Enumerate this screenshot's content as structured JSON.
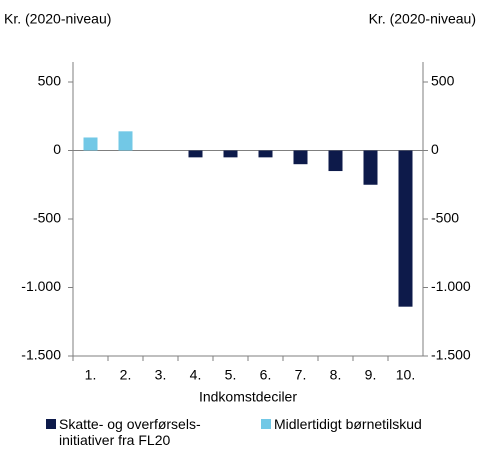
{
  "chart_data": {
    "type": "bar",
    "y_label": "Kr. (2020-niveau)",
    "y2_label": "Kr. (2020-niveau)",
    "x_label": "Indkomstdeciler",
    "categories": [
      "1.",
      "2.",
      "3.",
      "4.",
      "5.",
      "6.",
      "7.",
      "8.",
      "9.",
      "10."
    ],
    "series": [
      {
        "name": "Skatte- og overførsels- initiativer fra FL20",
        "color": "#0d1a4a",
        "values": [
          null,
          null,
          null,
          -50,
          -50,
          -50,
          -100,
          -150,
          -250,
          -1140
        ]
      },
      {
        "name": "Midlertidigt børnetilskud",
        "color": "#72c8e6",
        "values": [
          95,
          140,
          null,
          null,
          null,
          null,
          null,
          null,
          null,
          null
        ]
      }
    ],
    "ylim": [
      -1500,
      500
    ],
    "yticks": [
      {
        "value": -1500,
        "label": "-1.500"
      },
      {
        "value": -1000,
        "label": "-1.000"
      },
      -500,
      0,
      500
    ],
    "y2lim": [
      -1500,
      500
    ],
    "y2ticks": [
      {
        "value": -1500,
        "label": "-1.500"
      },
      {
        "value": -1000,
        "label": "-1.000"
      },
      -500,
      0,
      500
    ]
  }
}
